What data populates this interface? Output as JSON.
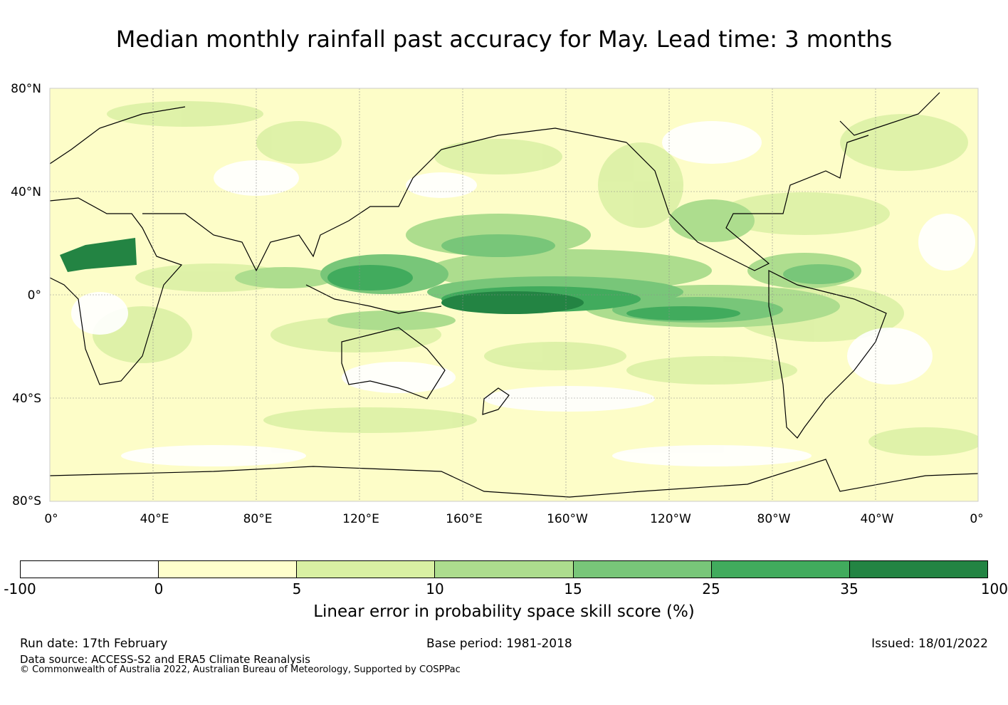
{
  "title": "Median monthly rainfall past accuracy for May. Lead time: 3 months",
  "map": {
    "lat_labels": [
      "80°N",
      "40°N",
      "0°",
      "40°S",
      "80°S"
    ],
    "lon_labels": [
      "0°",
      "40°E",
      "80°E",
      "120°E",
      "160°E",
      "160°W",
      "120°W",
      "80°W",
      "40°W",
      "0°"
    ],
    "background_color": "#fdfdc8",
    "coastline_color": "#000000",
    "grid_color": "#8c8c8c"
  },
  "colorbar": {
    "ticks": [
      "-100",
      "0",
      "5",
      "10",
      "15",
      "25",
      "35",
      "100"
    ],
    "colors": [
      "#ffffff",
      "#ffffcc",
      "#d9f0a3",
      "#addd8e",
      "#78c679",
      "#41ab5d",
      "#238443"
    ],
    "label": "Linear error in probability space skill score (%)"
  },
  "footer": {
    "run_date": "Run date: 17th February",
    "base_period": "Base period: 1981-2018",
    "issued": "Issued: 18/01/2022",
    "data_source": "Data source: ACCESS-S2 and ERA5 Climate Reanalysis",
    "copyright": "© Commonwealth of Australia 2022, Australian Bureau of Meteorology, Supported by COSPPac"
  }
}
